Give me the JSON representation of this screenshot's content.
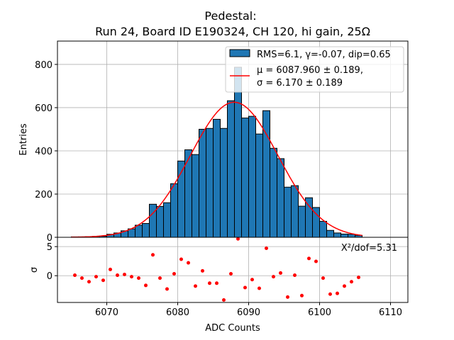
{
  "chart_data": {
    "type": "bar",
    "title": [
      "Pedestal:",
      "Run 24, Board ID E190324, CH 120, hi gain, 25Ω"
    ],
    "xlabel": "ADC Counts",
    "ylabel": "Entries",
    "residual_ylabel": "σ",
    "xlim": [
      6063.05,
      6112.45
    ],
    "ylim": [
      0,
      908
    ],
    "residual_ylim": [
      -4.6,
      6.6
    ],
    "xticks": [
      6070,
      6080,
      6090,
      6100,
      6110
    ],
    "yticks": [
      0,
      200,
      400,
      600,
      800
    ],
    "residual_yticks": [
      0,
      5
    ],
    "grid": true,
    "bin_width": 1,
    "bin_edges_start": 6065,
    "counts": [
      2,
      2,
      3,
      4,
      5,
      14,
      20,
      30,
      39,
      56,
      64,
      153,
      143,
      160,
      248,
      353,
      405,
      383,
      500,
      504,
      546,
      504,
      632,
      787,
      552,
      560,
      478,
      586,
      412,
      364,
      232,
      239,
      144,
      183,
      138,
      74,
      32,
      20,
      15,
      14,
      9
    ],
    "fit": {
      "type": "gaussian",
      "mu": 6087.96,
      "sigma": 6.17,
      "amplitude": 625,
      "range": [
        6065,
        6106
      ]
    },
    "residuals": [
      0.08,
      -0.42,
      -1.04,
      -0.17,
      -0.79,
      1.08,
      0.08,
      0.21,
      -0.17,
      -0.42,
      -1.67,
      3.58,
      -0.42,
      -2.29,
      0.33,
      2.83,
      2.21,
      -1.79,
      0.83,
      -1.29,
      -1.29,
      -4.17,
      0.33,
      6.33,
      -2.04,
      -0.67,
      -2.17,
      4.71,
      -0.17,
      0.46,
      -3.67,
      0.08,
      -3.42,
      2.96,
      2.46,
      -0.42,
      -3.17,
      -3.04,
      -1.79,
      -1.04,
      -0.29
    ],
    "legend": {
      "placement": "top-right",
      "hist_label": "RMS=6.1, γ=-0.07, dip=0.65",
      "fit_label_line1": "μ = 6087.960 ± 0.189,",
      "fit_label_line2": "σ = 6.170 ± 0.189"
    },
    "annotation": "Χ²/dof=5.31",
    "colors": {
      "bar": "#1f77b4",
      "fit": "#ff0000",
      "residual": "#ff0000",
      "grid": "#b0b0b0"
    }
  }
}
